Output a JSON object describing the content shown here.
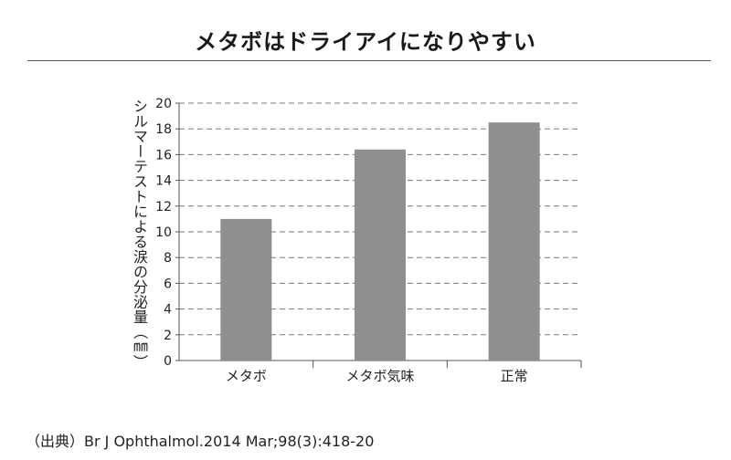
{
  "title": "メタボはドライアイになりやすい",
  "source": "（出典）Br J Ophthalmol.2014 Mar;98(3):418-20",
  "colors": {
    "bar": "#8f8f91",
    "grid": "#7a7a7a",
    "axis": "#555555",
    "text": "#222222"
  },
  "chart_data": {
    "type": "bar",
    "title": "メタボはドライアイになりやすい",
    "xlabel": "",
    "ylabel": "シルマーテストによる涙の分泌量（㎜）",
    "categories": [
      "メタボ",
      "メタボ気味",
      "正常"
    ],
    "values": [
      11.0,
      16.4,
      18.5
    ],
    "ylim": [
      0,
      20
    ],
    "yticks": [
      0,
      2,
      4,
      6,
      8,
      10,
      12,
      14,
      16,
      18,
      20
    ],
    "grid": true,
    "legend": "none"
  }
}
